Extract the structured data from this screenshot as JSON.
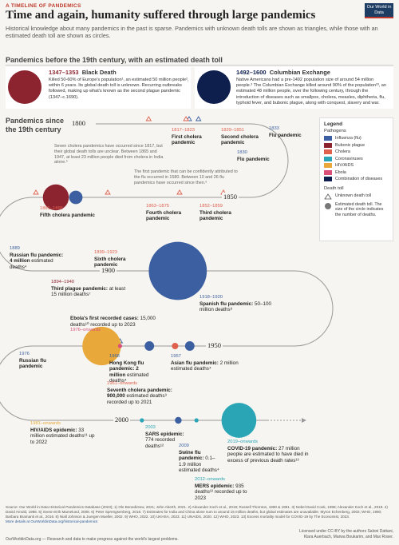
{
  "header": {
    "kicker": "A TIMELINE OF PANDEMICS",
    "title": "Time and again, humanity suffered through large pandemics",
    "subtitle": "Historical knowledge about many pandemics in the past is sparse. Pandemics with unknown death tolls are shown as triangles, while those with an estimated death toll are shown as circles.",
    "logo": "Our World in Data"
  },
  "pre19": {
    "heading": "Pandemics before the 19th century, with an estimated death toll",
    "black_death": {
      "years": "1347–1353",
      "name": "Black Death",
      "text": "Killed 50-60% of Europe's population¹, an estimated 50 million people², within 6 years. Its global death toll is unknown. Recurring outbreaks followed, making up what's known as the second plague pandemic (1347–c.1690)."
    },
    "columbian": {
      "years": "1492–1600",
      "name": "Columbian Exchange",
      "text": "Native Americans had a pre-1492 population size of around 54 million people.³ The Columbian Exchange killed around 90% of the population²³, an estimated 48 million people, over the following century, through the introduction of diseases such as smallpox, cholera, measles, diphtheria, flu, typhoid fever, and bubonic plague, along with conquest, slavery and war."
    }
  },
  "timeline_label": "Pandemics since the 19th century",
  "years": [
    "1800",
    "1850",
    "1900",
    "1950",
    "2000"
  ],
  "colors": {
    "influenza": "#3b5fa0",
    "plague": "#8c2430",
    "cholera": "#e0604e",
    "coronavirus": "#2aa5b5",
    "hiv": "#e8a93a",
    "ebola": "#d94f78",
    "combination": "#0e1f4d"
  },
  "events": {
    "cholera1": {
      "years": "1817–1823",
      "name": "First cholera pandemic"
    },
    "cholera2": {
      "years": "1829–1851",
      "name": "Second cholera pandemic"
    },
    "flu1833": {
      "years": "1833",
      "name": "Flu pandemic"
    },
    "flu1830": {
      "years": "1830",
      "name": "Flu pandemic"
    },
    "cholera3": {
      "years": "1852–1859",
      "name": "Third cholera pandemic"
    },
    "cholera4": {
      "years": "1863–1875",
      "name": "Fourth cholera pandemic"
    },
    "cholera5": {
      "years": "1881–1896",
      "name": "Fifth cholera pandemic"
    },
    "russian1889": {
      "years": "1889",
      "name": "Russian flu pandemic: 4 million",
      "detail": "estimated deaths⁴"
    },
    "cholera6": {
      "years": "1899–1923",
      "name": "Sixth cholera pandemic"
    },
    "plague3": {
      "years": "1894–1940",
      "name": "Third plague pandemic:",
      "detail": "at least 15 million deaths⁷"
    },
    "spanish": {
      "years": "1918–1920",
      "name": "Spanish flu pandemic:",
      "detail": "50–100 million deaths⁸"
    },
    "ebola": {
      "name": "Ebola's first recorded cases:",
      "detail": "15,000 deaths¹⁰ recorded up to 2023",
      "years": "1976–onwards"
    },
    "russian1976": {
      "years": "1976",
      "name": "Russian flu pandemic"
    },
    "hongkong": {
      "years": "1968",
      "name": "Hong Kong flu pandemic: 2 million",
      "detail": "estimated deaths⁴"
    },
    "asian": {
      "years": "1957",
      "name": "Asian flu pandemic:",
      "detail": "2 million estimated deaths⁴"
    },
    "cholera7": {
      "years": "1961–onwards",
      "name": "Seventh cholera pandemic: 900,000",
      "detail": "estimated deaths⁹ recorded up to 2021"
    },
    "hiv": {
      "years": "1981–onwards",
      "name": "HIV/AIDS epidemic:",
      "detail": "33 million estimated deaths¹¹ up to 2022"
    },
    "sars": {
      "years": "2003",
      "name": "SARS epidemic:",
      "detail": "774 recorded deaths¹²"
    },
    "swine": {
      "years": "2009",
      "name": "Swine flu pandemic:",
      "detail": "0.1–1.9 million estimated deaths⁴"
    },
    "covid": {
      "years": "2019–onwards",
      "name": "COVID-19 pandemic:",
      "detail": "27 million people are estimated to have died in excess of previous death rates¹³"
    },
    "mers": {
      "years": "2012–onwards",
      "name": "MERS epidemic:",
      "detail": "935 deaths¹² recorded up to 2023"
    }
  },
  "notes": {
    "cholera_note": "Seven cholera pandemics have occurred since 1817, but their global death tolls are unclear. Between 1865 and 1947, at least 23 million people died from cholera in India alone.⁵",
    "flu_note": "The first pandemic that can be confidently attributed to the flu occurred in 1580. Between 10 and 26 flu pandemics have occurred since then.⁶"
  },
  "legend": {
    "title": "Legend",
    "subtitle": "Pathogens",
    "items": [
      "Influenza (flu)",
      "Bubonic plague",
      "Cholera",
      "Coronaviruses",
      "HIV/AIDS",
      "Ebola",
      "Combination of diseases"
    ],
    "death_title": "Death toll",
    "unknown": "Unknown death toll",
    "estimated": "Estimated death toll. The size of the circle indicates the number of deaths."
  },
  "footer": {
    "source": "Source: Our World in Data Historical Pandemics Database (2023); 1) Ole Benedictow, 2021; John Aberth, 2021. 2) Alexander Koch et al., 2019; Russell Thornton, 1990 & 1991. 3) Nobel David Cook, 1998; Alexander Koch et al., 2019. 4) David Arnold, 1986. 5) Svenn-Erik Mamelund, 2008. 6) Peter Sprengsenberg, 2018. 7) Estimates for India and China alone sum to around 15 million deaths, but global estimates are unavailable. Myron Echenberg, 2002; WHO, 1990; Barbara Bramanti et al., 2016. 8) Niall Johnson & Juergen Mueller, 2002. 9) WHO, 2022. 10) UKHSA, 2023. 11) UNAIDS, 2020. 12) WHO, 2023. 13) Excess mortality model for COVID-19 by The Economist, 2023.",
    "more": "More details at OurWorldinData.org/historical-pandemics",
    "bottom": "OurWorldinData.org — Research and data to make progress against the world's largest problems.",
    "license": "Licensed under CC-BY by the authors Saloni Dattani, Klara Auerbach, Marwa Boukarim, and Max Roser."
  },
  "chart_data": {
    "type": "scatter",
    "title": "Time and again, humanity suffered through large pandemics",
    "series": [
      {
        "name": "Influenza (flu)",
        "points": [
          {
            "label": "Flu pandemic",
            "year": 1830,
            "deaths_million": null
          },
          {
            "label": "Flu pandemic",
            "year": 1833,
            "deaths_million": null
          },
          {
            "label": "Russian flu pandemic",
            "year": 1889,
            "deaths_million": 4
          },
          {
            "label": "Spanish flu pandemic",
            "year": 1918,
            "deaths_million": "50–100"
          },
          {
            "label": "Asian flu pandemic",
            "year": 1957,
            "deaths_million": 2
          },
          {
            "label": "Hong Kong flu pandemic",
            "year": 1968,
            "deaths_million": 2
          },
          {
            "label": "Russian flu pandemic",
            "year": 1976,
            "deaths_million": null
          },
          {
            "label": "Swine flu pandemic",
            "year": 2009,
            "deaths_million": "0.1–1.9"
          }
        ]
      },
      {
        "name": "Bubonic plague",
        "points": [
          {
            "label": "Black Death",
            "year": 1347,
            "deaths_million": 50
          },
          {
            "label": "Third plague pandemic",
            "year": 1894,
            "deaths_million": 15
          }
        ]
      },
      {
        "name": "Cholera",
        "points": [
          {
            "label": "First cholera pandemic",
            "year": 1817,
            "deaths_million": null
          },
          {
            "label": "Second cholera pandemic",
            "year": 1829,
            "deaths_million": null
          },
          {
            "label": "Third cholera pandemic",
            "year": 1852,
            "deaths_million": null
          },
          {
            "label": "Fourth cholera pandemic",
            "year": 1863,
            "deaths_million": null
          },
          {
            "label": "Fifth cholera pandemic",
            "year": 1881,
            "deaths_million": null
          },
          {
            "label": "Sixth cholera pandemic",
            "year": 1899,
            "deaths_million": null
          },
          {
            "label": "Seventh cholera pandemic",
            "year": 1961,
            "deaths_million": 0.9
          }
        ]
      },
      {
        "name": "Coronaviruses",
        "points": [
          {
            "label": "SARS epidemic",
            "year": 2003,
            "deaths_million": 0.000774
          },
          {
            "label": "MERS epidemic",
            "year": 2012,
            "deaths_million": 0.000935
          },
          {
            "label": "COVID-19 pandemic",
            "year": 2019,
            "deaths_million": 27
          }
        ]
      },
      {
        "name": "HIV/AIDS",
        "points": [
          {
            "label": "HIV/AIDS epidemic",
            "year": 1981,
            "deaths_million": 33
          }
        ]
      },
      {
        "name": "Ebola",
        "points": [
          {
            "label": "Ebola's first recorded cases",
            "year": 1976,
            "deaths_million": 0.015
          }
        ]
      },
      {
        "name": "Combination of diseases",
        "points": [
          {
            "label": "Columbian Exchange",
            "year": 1492,
            "deaths_million": 48
          }
        ]
      }
    ]
  }
}
